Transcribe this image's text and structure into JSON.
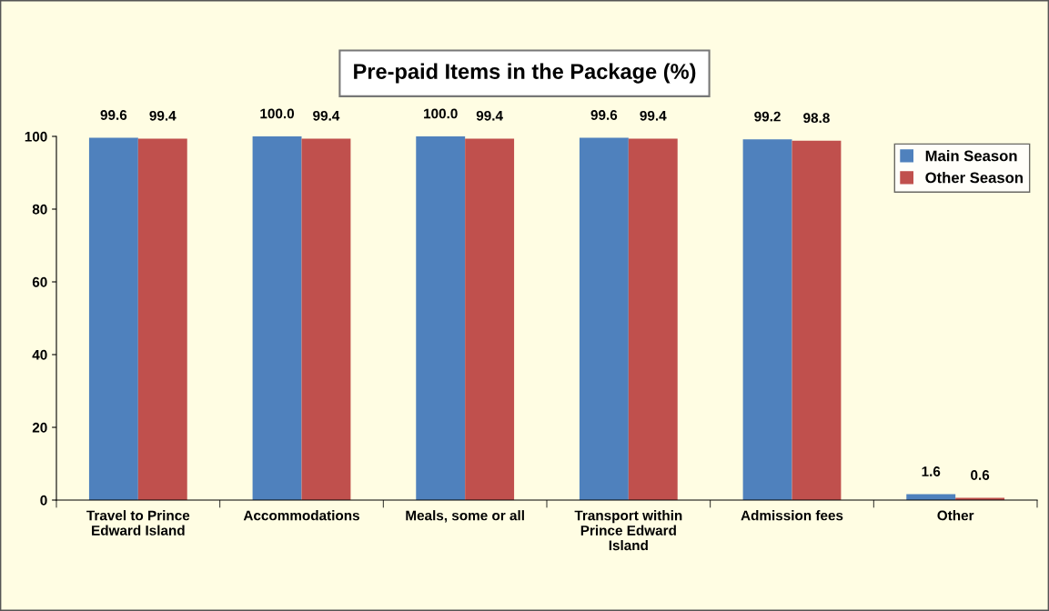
{
  "chart_data": {
    "type": "bar",
    "title": "Pre-paid Items in the Package (%)",
    "categories": [
      "Travel to Prince\nEdward Island",
      "Accommodations",
      "Meals, some or all",
      "Transport within\nPrince Edward\nIsland",
      "Admission fees",
      "Other"
    ],
    "series": [
      {
        "name": "Main Season",
        "color": "#4f81bd",
        "values": [
          99.6,
          100.0,
          100.0,
          99.6,
          99.2,
          1.6
        ],
        "value_labels": [
          "99.6",
          "100.0",
          "100.0",
          "99.6",
          "99.2",
          "1.6"
        ]
      },
      {
        "name": "Other Season",
        "color": "#c0504d",
        "values": [
          99.4,
          99.4,
          99.4,
          99.4,
          98.8,
          0.6
        ],
        "value_labels": [
          "99.4",
          "99.4",
          "99.4",
          "99.4",
          "98.8",
          "0.6"
        ]
      }
    ],
    "ylim": [
      0,
      100
    ],
    "yticks": [
      0,
      20,
      40,
      60,
      80,
      100
    ],
    "grid": false,
    "legend": "top right"
  }
}
